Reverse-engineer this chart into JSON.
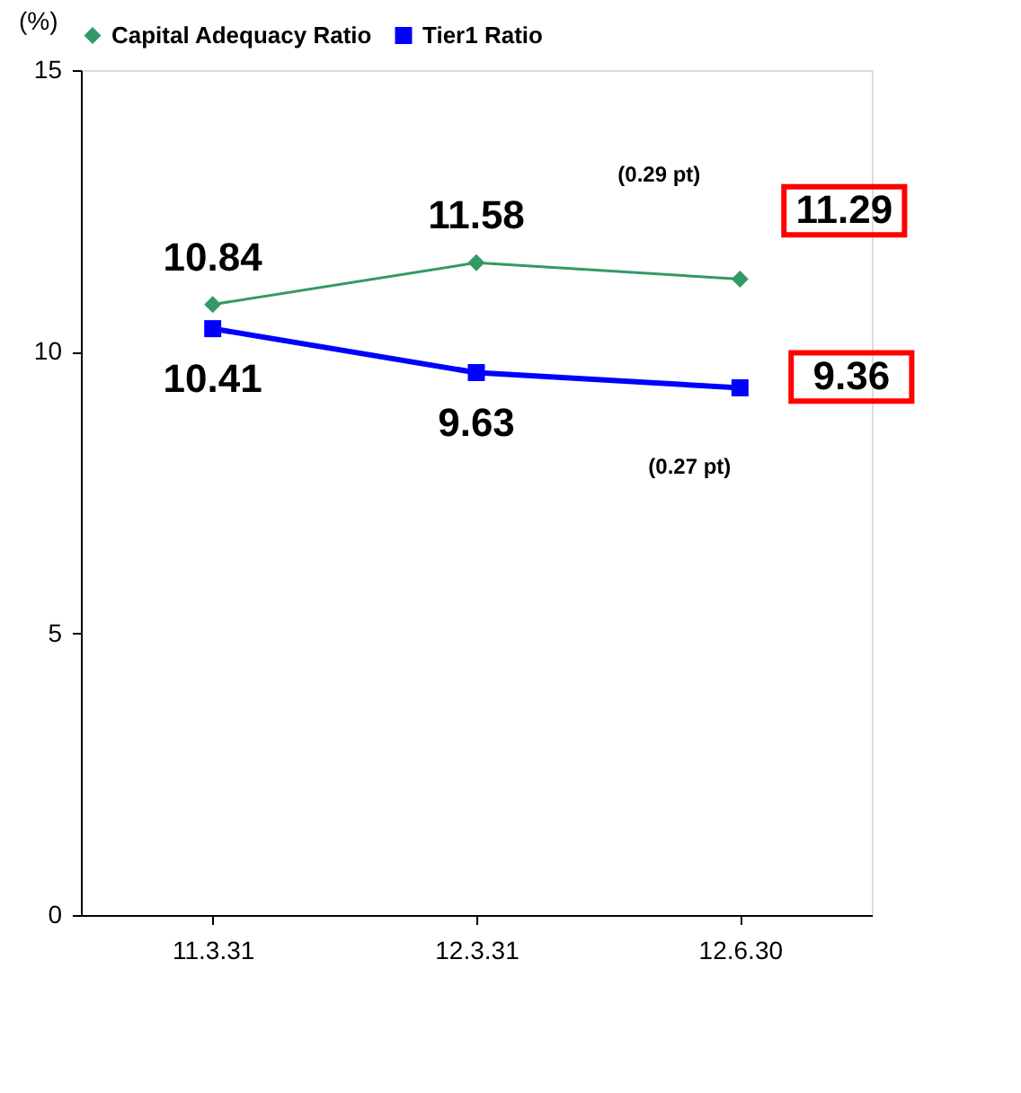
{
  "chart_data": {
    "type": "line",
    "ylabel": "(%)",
    "categories": [
      "11.3.31",
      "12.3.31",
      "12.6.30"
    ],
    "series": [
      {
        "name": "Capital Adequacy Ratio",
        "color": "#339966",
        "marker": "diamond",
        "values": [
          10.84,
          11.58,
          11.29
        ]
      },
      {
        "name": "Tier1 Ratio",
        "color": "#0000ff",
        "marker": "square",
        "values": [
          10.41,
          9.63,
          9.36
        ]
      }
    ],
    "ylim": [
      0,
      15
    ],
    "yticks": [
      0,
      5,
      10,
      15
    ],
    "grid": false,
    "legend": "top left",
    "data_labels": true,
    "line_style": "solid",
    "annotations": [
      "(0.29 pt)",
      "(0.27 pt)"
    ]
  }
}
